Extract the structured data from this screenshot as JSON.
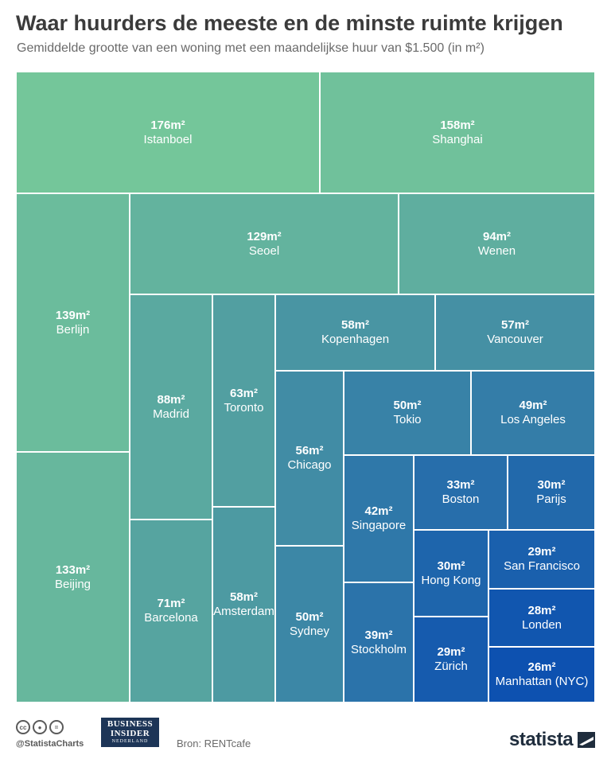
{
  "title": "Waar huurders de meeste en de minste ruimte krijgen",
  "subtitle": "Gemiddelde grootte van een woning met een maandelijkse huur van $1.500 (in m²)",
  "footer": {
    "handle": "@StatistaCharts",
    "source": "Bron: RENTcafe",
    "brand": "statista",
    "partner_line1": "BUSINESS",
    "partner_line2": "INSIDER",
    "partner_line3": "NEDERLAND",
    "cc_icons": [
      "cc",
      "by",
      "="
    ]
  },
  "colors": {
    "gradient_start": "#74c69a",
    "gradient_end": "#0d51b0",
    "border": "#ffffff"
  },
  "chart_data": {
    "type": "treemap",
    "unit": "m²",
    "items": [
      {
        "name": "Istanboel",
        "value": 176,
        "label": "176m²"
      },
      {
        "name": "Shanghai",
        "value": 158,
        "label": "158m²"
      },
      {
        "name": "Berlijn",
        "value": 139,
        "label": "139m²"
      },
      {
        "name": "Beijing",
        "value": 133,
        "label": "133m²"
      },
      {
        "name": "Seoel",
        "value": 129,
        "label": "129m²"
      },
      {
        "name": "Wenen",
        "value": 94,
        "label": "94m²"
      },
      {
        "name": "Madrid",
        "value": 88,
        "label": "88m²"
      },
      {
        "name": "Barcelona",
        "value": 71,
        "label": "71m²"
      },
      {
        "name": "Toronto",
        "value": 63,
        "label": "63m²"
      },
      {
        "name": "Amsterdam",
        "value": 58,
        "label": "58m²"
      },
      {
        "name": "Kopenhagen",
        "value": 58,
        "label": "58m²"
      },
      {
        "name": "Vancouver",
        "value": 57,
        "label": "57m²"
      },
      {
        "name": "Chicago",
        "value": 56,
        "label": "56m²"
      },
      {
        "name": "Sydney",
        "value": 50,
        "label": "50m²"
      },
      {
        "name": "Tokio",
        "value": 50,
        "label": "50m²"
      },
      {
        "name": "Los Angeles",
        "value": 49,
        "label": "49m²"
      },
      {
        "name": "Singapore",
        "value": 42,
        "label": "42m²"
      },
      {
        "name": "Stockholm",
        "value": 39,
        "label": "39m²"
      },
      {
        "name": "Boston",
        "value": 33,
        "label": "33m²"
      },
      {
        "name": "Parijs",
        "value": 30,
        "label": "30m²"
      },
      {
        "name": "Hong Kong",
        "value": 30,
        "label": "30m²"
      },
      {
        "name": "San Francisco",
        "value": 29,
        "label": "29m²"
      },
      {
        "name": "Zürich",
        "value": 29,
        "label": "29m²"
      },
      {
        "name": "Londen",
        "value": 28,
        "label": "28m²"
      },
      {
        "name": "Manhattan (NYC)",
        "value": 26,
        "label": "26m²"
      }
    ]
  }
}
